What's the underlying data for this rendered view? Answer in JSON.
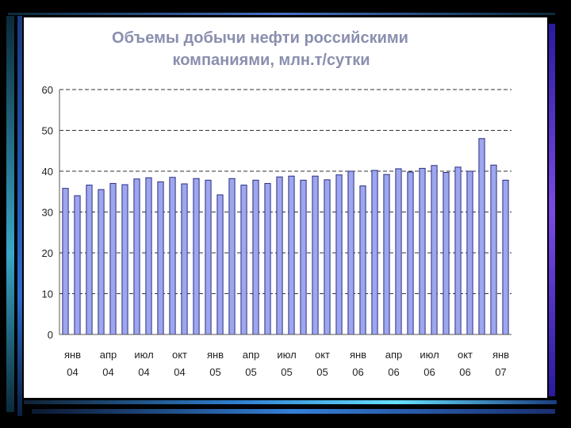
{
  "chart_data": {
    "type": "bar",
    "title_line1": "Объемы добычи нефти российскими",
    "title_line2": "компаниями, млн.т/сутки",
    "ylim": [
      0,
      60
    ],
    "yticks": [
      0,
      10,
      20,
      30,
      40,
      50,
      60
    ],
    "grid": "horizontal-dashed",
    "bar_color": "#9ea6ee",
    "bar_edge_color": "#2a2e82",
    "x_labels": [
      {
        "index": 0,
        "line1": "янв",
        "line2": "04"
      },
      {
        "index": 3,
        "line1": "апр",
        "line2": "04"
      },
      {
        "index": 6,
        "line1": "июл",
        "line2": "04"
      },
      {
        "index": 9,
        "line1": "окт",
        "line2": "04"
      },
      {
        "index": 12,
        "line1": "янв",
        "line2": "05"
      },
      {
        "index": 15,
        "line1": "апр",
        "line2": "05"
      },
      {
        "index": 18,
        "line1": "июл",
        "line2": "05"
      },
      {
        "index": 21,
        "line1": "окт",
        "line2": "05"
      },
      {
        "index": 24,
        "line1": "янв",
        "line2": "06"
      },
      {
        "index": 27,
        "line1": "апр",
        "line2": "06"
      },
      {
        "index": 30,
        "line1": "июл",
        "line2": "06"
      },
      {
        "index": 33,
        "line1": "окт",
        "line2": "06"
      },
      {
        "index": 36,
        "line1": "янв",
        "line2": "07"
      }
    ],
    "values": [
      35.8,
      34.0,
      36.6,
      35.5,
      37.0,
      36.7,
      38.1,
      38.4,
      37.4,
      38.5,
      36.9,
      38.2,
      37.8,
      34.2,
      38.2,
      36.6,
      37.8,
      37.0,
      38.6,
      38.8,
      37.8,
      38.8,
      37.9,
      39.1,
      40.0,
      36.4,
      40.2,
      39.2,
      40.6,
      39.8,
      40.7,
      41.4,
      39.7,
      41.0,
      40.0,
      48.0,
      41.5,
      37.8
    ]
  }
}
